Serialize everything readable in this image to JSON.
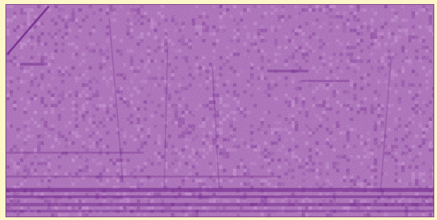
{
  "image": {
    "description_free": true,
    "colors": {
      "frame": "#fdf6c8",
      "base": "#a872b4",
      "dark": "#6a1e86",
      "light": "#d7aee0",
      "border": "#7a3a86"
    },
    "texture": {
      "seed": 7,
      "cell": 5,
      "noise_strength": 0.55
    }
  }
}
